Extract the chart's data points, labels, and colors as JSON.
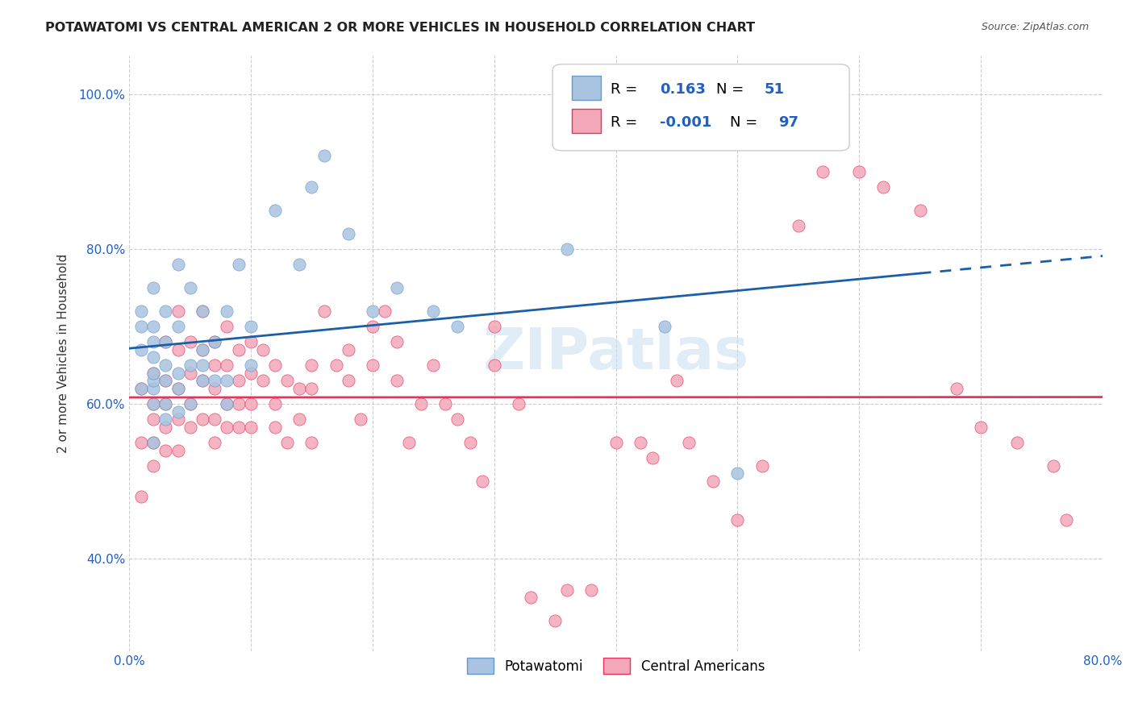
{
  "title": "POTAWATOMI VS CENTRAL AMERICAN 2 OR MORE VEHICLES IN HOUSEHOLD CORRELATION CHART",
  "source": "Source: ZipAtlas.com",
  "ylabel": "2 or more Vehicles in Household",
  "xlim": [
    0.0,
    0.8
  ],
  "ylim": [
    0.28,
    1.05
  ],
  "xticks": [
    0.0,
    0.1,
    0.2,
    0.3,
    0.4,
    0.5,
    0.6,
    0.7,
    0.8
  ],
  "xticklabels": [
    "0.0%",
    "",
    "",
    "",
    "",
    "",
    "",
    "",
    "80.0%"
  ],
  "yticks": [
    0.4,
    0.6,
    0.8,
    1.0
  ],
  "yticklabels": [
    "40.0%",
    "60.0%",
    "80.0%",
    "100.0%"
  ],
  "color_blue": "#a8c4e0",
  "color_pink": "#f4a7b9",
  "line_blue": "#1a5fa8",
  "line_pink": "#e8345a",
  "watermark": "ZIPatlas",
  "potawatomi_x": [
    0.01,
    0.01,
    0.01,
    0.01,
    0.02,
    0.02,
    0.02,
    0.02,
    0.02,
    0.02,
    0.02,
    0.02,
    0.02,
    0.03,
    0.03,
    0.03,
    0.03,
    0.03,
    0.03,
    0.04,
    0.04,
    0.04,
    0.04,
    0.04,
    0.05,
    0.05,
    0.05,
    0.06,
    0.06,
    0.06,
    0.06,
    0.07,
    0.07,
    0.08,
    0.08,
    0.08,
    0.09,
    0.1,
    0.1,
    0.12,
    0.14,
    0.15,
    0.16,
    0.18,
    0.2,
    0.22,
    0.25,
    0.27,
    0.36,
    0.44,
    0.5
  ],
  "potawatomi_y": [
    0.62,
    0.67,
    0.7,
    0.72,
    0.55,
    0.6,
    0.62,
    0.63,
    0.64,
    0.66,
    0.68,
    0.7,
    0.75,
    0.58,
    0.6,
    0.63,
    0.65,
    0.68,
    0.72,
    0.59,
    0.62,
    0.64,
    0.7,
    0.78,
    0.6,
    0.65,
    0.75,
    0.63,
    0.65,
    0.67,
    0.72,
    0.63,
    0.68,
    0.6,
    0.63,
    0.72,
    0.78,
    0.65,
    0.7,
    0.85,
    0.78,
    0.88,
    0.92,
    0.82,
    0.72,
    0.75,
    0.72,
    0.7,
    0.8,
    0.7,
    0.51
  ],
  "central_x": [
    0.01,
    0.01,
    0.01,
    0.02,
    0.02,
    0.02,
    0.02,
    0.02,
    0.03,
    0.03,
    0.03,
    0.03,
    0.03,
    0.04,
    0.04,
    0.04,
    0.04,
    0.04,
    0.05,
    0.05,
    0.05,
    0.05,
    0.06,
    0.06,
    0.06,
    0.06,
    0.07,
    0.07,
    0.07,
    0.07,
    0.07,
    0.08,
    0.08,
    0.08,
    0.08,
    0.09,
    0.09,
    0.09,
    0.09,
    0.1,
    0.1,
    0.1,
    0.1,
    0.11,
    0.11,
    0.12,
    0.12,
    0.12,
    0.13,
    0.13,
    0.14,
    0.14,
    0.15,
    0.15,
    0.15,
    0.16,
    0.17,
    0.18,
    0.18,
    0.19,
    0.2,
    0.2,
    0.21,
    0.22,
    0.22,
    0.23,
    0.24,
    0.25,
    0.26,
    0.27,
    0.28,
    0.29,
    0.3,
    0.3,
    0.32,
    0.33,
    0.35,
    0.36,
    0.38,
    0.4,
    0.42,
    0.43,
    0.45,
    0.46,
    0.48,
    0.5,
    0.52,
    0.55,
    0.57,
    0.6,
    0.62,
    0.65,
    0.68,
    0.7,
    0.73,
    0.76,
    0.77
  ],
  "central_y": [
    0.62,
    0.55,
    0.48,
    0.64,
    0.6,
    0.58,
    0.55,
    0.52,
    0.68,
    0.63,
    0.6,
    0.57,
    0.54,
    0.72,
    0.67,
    0.62,
    0.58,
    0.54,
    0.68,
    0.64,
    0.6,
    0.57,
    0.72,
    0.67,
    0.63,
    0.58,
    0.68,
    0.65,
    0.62,
    0.58,
    0.55,
    0.7,
    0.65,
    0.6,
    0.57,
    0.67,
    0.63,
    0.6,
    0.57,
    0.68,
    0.64,
    0.6,
    0.57,
    0.67,
    0.63,
    0.65,
    0.6,
    0.57,
    0.63,
    0.55,
    0.62,
    0.58,
    0.65,
    0.62,
    0.55,
    0.72,
    0.65,
    0.67,
    0.63,
    0.58,
    0.7,
    0.65,
    0.72,
    0.68,
    0.63,
    0.55,
    0.6,
    0.65,
    0.6,
    0.58,
    0.55,
    0.5,
    0.7,
    0.65,
    0.6,
    0.35,
    0.32,
    0.36,
    0.36,
    0.55,
    0.55,
    0.53,
    0.63,
    0.55,
    0.5,
    0.45,
    0.52,
    0.83,
    0.9,
    0.9,
    0.88,
    0.85,
    0.62,
    0.57,
    0.55,
    0.52,
    0.45
  ]
}
